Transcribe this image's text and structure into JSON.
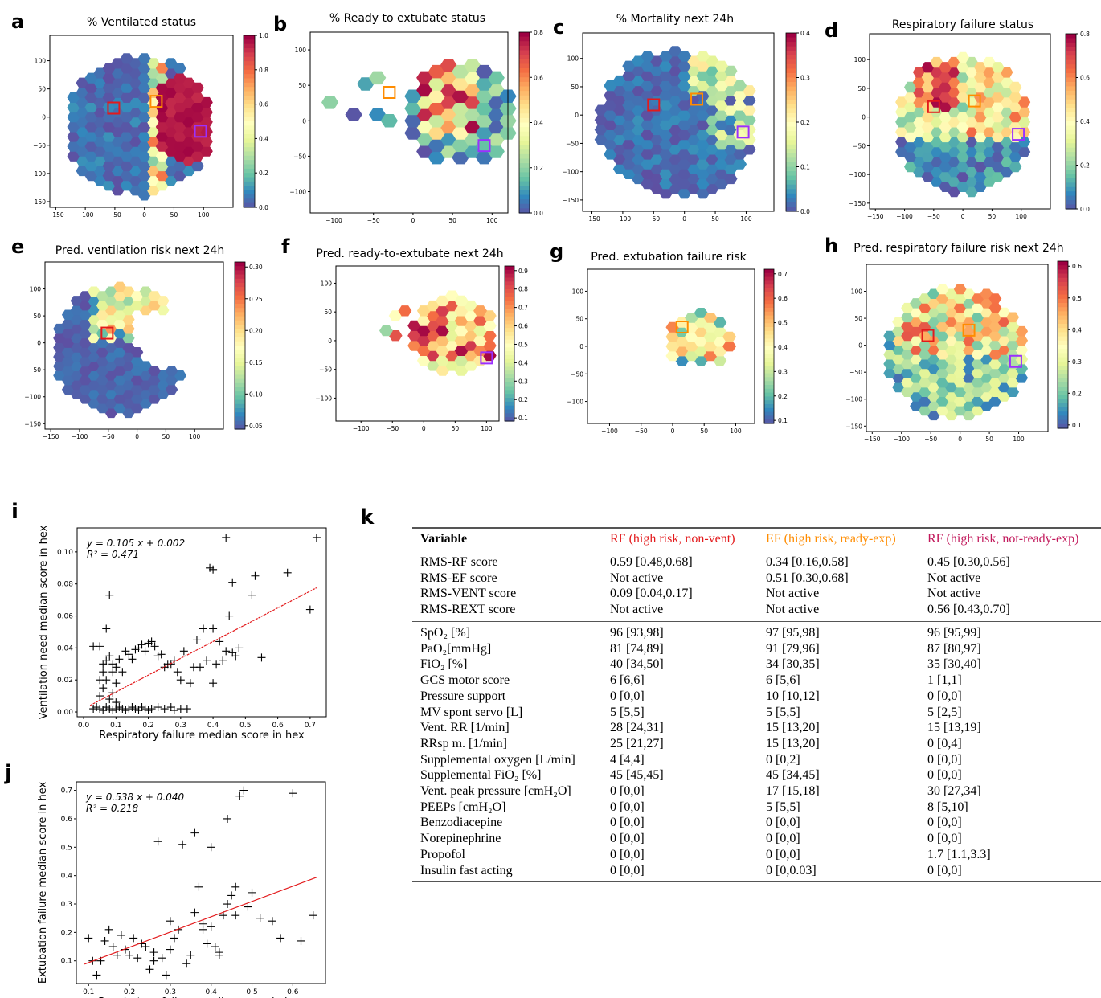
{
  "colormap": [
    "#5e4fa2",
    "#3288bd",
    "#66c2a5",
    "#abdda4",
    "#e6f598",
    "#ffffbf",
    "#fee08b",
    "#fdae61",
    "#f46d43",
    "#d53e4f",
    "#9e0142"
  ],
  "box_colors": {
    "red": "#e31a1c",
    "orange": "#ff8c00",
    "purple": "#9b30ff"
  },
  "hexmaps": [
    {
      "letter": "a",
      "title": "% Ventilated status",
      "xticks": [
        "−150",
        "−100",
        "−50",
        "0",
        "50",
        "100"
      ],
      "yticks": [
        "100",
        "50",
        "0",
        "−50",
        "−100",
        "−150"
      ],
      "cbar_ticks": [
        "1.0",
        "0.8",
        "0.6",
        "0.4",
        "0.2",
        "0.0"
      ]
    },
    {
      "letter": "b",
      "title": "% Ready to extubate status",
      "xticks": [
        "−100",
        "−50",
        "0",
        "50",
        "100"
      ],
      "yticks": [
        "100",
        "50",
        "0",
        "−50",
        "−100"
      ],
      "cbar_ticks": [
        "0.8",
        "0.6",
        "0.4",
        "0.2",
        "0.0"
      ]
    },
    {
      "letter": "c",
      "title": "% Mortality next 24h",
      "xticks": [
        "−150",
        "−100",
        "−50",
        "0",
        "50",
        "100"
      ],
      "yticks": [
        "100",
        "50",
        "0",
        "−50",
        "−100",
        "−150"
      ],
      "cbar_ticks": [
        "0.4",
        "0.3",
        "0.2",
        "0.1",
        "0.0"
      ]
    },
    {
      "letter": "d",
      "title": "Respiratory failure status",
      "xticks": [
        "−150",
        "−100",
        "−50",
        "0",
        "50",
        "100"
      ],
      "yticks": [
        "100",
        "50",
        "0",
        "−50",
        "−100",
        "−150"
      ],
      "cbar_ticks": [
        "0.8",
        "0.6",
        "0.4",
        "0.2",
        "0.0"
      ]
    },
    {
      "letter": "e",
      "title": "Pred. ventilation risk next 24h",
      "xticks": [
        "−150",
        "−100",
        "−50",
        "0",
        "50",
        "100"
      ],
      "yticks": [
        "100",
        "50",
        "0",
        "−50",
        "−100",
        "−150"
      ],
      "cbar_ticks": [
        "0.30",
        "0.25",
        "0.20",
        "0.15",
        "0.10",
        "0.05"
      ]
    },
    {
      "letter": "f",
      "title": "Pred. ready-to-extubate next 24h",
      "xticks": [
        "−100",
        "−50",
        "0",
        "50",
        "100"
      ],
      "yticks": [
        "100",
        "50",
        "0",
        "−50",
        "−100"
      ],
      "cbar_ticks": [
        "0.9",
        "0.8",
        "0.7",
        "0.6",
        "0.5",
        "0.4",
        "0.3",
        "0.2",
        "0.1"
      ]
    },
    {
      "letter": "g",
      "title": "Pred. extubation failure risk",
      "xticks": [
        "−100",
        "−50",
        "0",
        "50",
        "100"
      ],
      "yticks": [
        "100",
        "50",
        "0",
        "−50",
        "−100"
      ],
      "cbar_ticks": [
        "0.7",
        "0.6",
        "0.5",
        "0.4",
        "0.3",
        "0.2",
        "0.1"
      ]
    },
    {
      "letter": "h",
      "title": "Pred. respiratory failure risk next 24h",
      "xticks": [
        "−150",
        "−100",
        "−50",
        "0",
        "50",
        "100"
      ],
      "yticks": [
        "100",
        "50",
        "0",
        "−50",
        "−100",
        "−150"
      ],
      "cbar_ticks": [
        "0.6",
        "0.5",
        "0.4",
        "0.3",
        "0.2",
        "0.1"
      ]
    }
  ],
  "chart_data": [
    {
      "type": "scatter",
      "panel": "i",
      "xlabel": "Respiratory failure median score in hex",
      "ylabel": "Ventilation need median score in hex",
      "xlim": [
        -0.02,
        0.75
      ],
      "ylim": [
        -0.003,
        0.115
      ],
      "xticks": [
        "0.0",
        "0.1",
        "0.2",
        "0.3",
        "0.4",
        "0.5",
        "0.6",
        "0.7"
      ],
      "yticks": [
        "0.00",
        "0.02",
        "0.04",
        "0.06",
        "0.08",
        "0.10"
      ],
      "equation": "y = 0.105 x + 0.002",
      "r2": "R² = 0.471",
      "fit": {
        "slope": 0.105,
        "intercept": 0.002,
        "x0": 0.02,
        "x1": 0.72
      },
      "points": [
        [
          0.03,
          0.041
        ],
        [
          0.05,
          0.041
        ],
        [
          0.07,
          0.052
        ],
        [
          0.08,
          0.073
        ],
        [
          0.06,
          0.03
        ],
        [
          0.09,
          0.025
        ],
        [
          0.1,
          0.018
        ],
        [
          0.12,
          0.025
        ],
        [
          0.15,
          0.033
        ],
        [
          0.17,
          0.04
        ],
        [
          0.19,
          0.038
        ],
        [
          0.2,
          0.043
        ],
        [
          0.22,
          0.041
        ],
        [
          0.25,
          0.028
        ],
        [
          0.23,
          0.035
        ],
        [
          0.27,
          0.03
        ],
        [
          0.29,
          0.025
        ],
        [
          0.3,
          0.02
        ],
        [
          0.33,
          0.018
        ],
        [
          0.36,
          0.028
        ],
        [
          0.38,
          0.032
        ],
        [
          0.4,
          0.052
        ],
        [
          0.42,
          0.044
        ],
        [
          0.44,
          0.038
        ],
        [
          0.46,
          0.037
        ],
        [
          0.48,
          0.04
        ],
        [
          0.39,
          0.09
        ],
        [
          0.4,
          0.089
        ],
        [
          0.44,
          0.109
        ],
        [
          0.46,
          0.081
        ],
        [
          0.53,
          0.085
        ],
        [
          0.52,
          0.073
        ],
        [
          0.55,
          0.034
        ],
        [
          0.63,
          0.087
        ],
        [
          0.7,
          0.064
        ],
        [
          0.72,
          0.109
        ],
        [
          0.45,
          0.06
        ],
        [
          0.4,
          0.018
        ],
        [
          0.35,
          0.045
        ],
        [
          0.37,
          0.052
        ],
        [
          0.03,
          0.002
        ],
        [
          0.04,
          0.003
        ],
        [
          0.05,
          0.002
        ],
        [
          0.06,
          0.001
        ],
        [
          0.07,
          0.003
        ],
        [
          0.08,
          0.002
        ],
        [
          0.09,
          0.001
        ],
        [
          0.1,
          0.002
        ],
        [
          0.11,
          0.003
        ],
        [
          0.12,
          0.002
        ],
        [
          0.13,
          0.001
        ],
        [
          0.14,
          0.002
        ],
        [
          0.15,
          0.003
        ],
        [
          0.16,
          0.002
        ],
        [
          0.17,
          0.001
        ],
        [
          0.18,
          0.003
        ],
        [
          0.19,
          0.002
        ],
        [
          0.2,
          0.001
        ],
        [
          0.21,
          0.002
        ],
        [
          0.23,
          0.003
        ],
        [
          0.25,
          0.002
        ],
        [
          0.27,
          0.003
        ],
        [
          0.28,
          0.001
        ],
        [
          0.3,
          0.002
        ],
        [
          0.32,
          0.002
        ],
        [
          0.05,
          0.01
        ],
        [
          0.06,
          0.015
        ],
        [
          0.07,
          0.02
        ],
        [
          0.08,
          0.008
        ],
        [
          0.09,
          0.012
        ],
        [
          0.1,
          0.006
        ],
        [
          0.05,
          0.02
        ],
        [
          0.06,
          0.025
        ],
        [
          0.07,
          0.032
        ],
        [
          0.08,
          0.035
        ],
        [
          0.09,
          0.03
        ],
        [
          0.1,
          0.028
        ],
        [
          0.11,
          0.033
        ],
        [
          0.13,
          0.038
        ],
        [
          0.14,
          0.036
        ],
        [
          0.16,
          0.039
        ],
        [
          0.18,
          0.042
        ],
        [
          0.21,
          0.044
        ],
        [
          0.24,
          0.036
        ],
        [
          0.26,
          0.03
        ],
        [
          0.28,
          0.032
        ],
        [
          0.31,
          0.038
        ],
        [
          0.34,
          0.028
        ],
        [
          0.41,
          0.03
        ],
        [
          0.43,
          0.032
        ],
        [
          0.47,
          0.035
        ]
      ]
    },
    {
      "type": "scatter",
      "panel": "j",
      "xlabel": "Respiratory failure median score in hex",
      "ylabel": "Extubation failure median score in hex",
      "xlim": [
        0.07,
        0.68
      ],
      "ylim": [
        0.02,
        0.73
      ],
      "xticks": [
        "0.1",
        "0.2",
        "0.3",
        "0.4",
        "0.5",
        "0.6"
      ],
      "yticks": [
        "0.1",
        "0.2",
        "0.3",
        "0.4",
        "0.5",
        "0.6",
        "0.7"
      ],
      "equation": "y = 0.538 x + 0.040",
      "r2": "R² = 0.218",
      "fit": {
        "slope": 0.538,
        "intercept": 0.04,
        "x0": 0.09,
        "x1": 0.66
      },
      "points": [
        [
          0.1,
          0.18
        ],
        [
          0.11,
          0.1
        ],
        [
          0.12,
          0.05
        ],
        [
          0.13,
          0.1
        ],
        [
          0.14,
          0.17
        ],
        [
          0.15,
          0.21
        ],
        [
          0.16,
          0.15
        ],
        [
          0.17,
          0.12
        ],
        [
          0.18,
          0.19
        ],
        [
          0.19,
          0.14
        ],
        [
          0.2,
          0.12
        ],
        [
          0.21,
          0.18
        ],
        [
          0.22,
          0.11
        ],
        [
          0.23,
          0.16
        ],
        [
          0.24,
          0.15
        ],
        [
          0.25,
          0.07
        ],
        [
          0.26,
          0.13
        ],
        [
          0.27,
          0.52
        ],
        [
          0.28,
          0.11
        ],
        [
          0.29,
          0.05
        ],
        [
          0.3,
          0.24
        ],
        [
          0.31,
          0.18
        ],
        [
          0.32,
          0.21
        ],
        [
          0.33,
          0.51
        ],
        [
          0.34,
          0.09
        ],
        [
          0.35,
          0.12
        ],
        [
          0.36,
          0.55
        ],
        [
          0.37,
          0.36
        ],
        [
          0.38,
          0.23
        ],
        [
          0.39,
          0.16
        ],
        [
          0.4,
          0.5
        ],
        [
          0.41,
          0.15
        ],
        [
          0.42,
          0.13
        ],
        [
          0.43,
          0.26
        ],
        [
          0.44,
          0.6
        ],
        [
          0.45,
          0.33
        ],
        [
          0.46,
          0.36
        ],
        [
          0.47,
          0.68
        ],
        [
          0.48,
          0.7
        ],
        [
          0.49,
          0.29
        ],
        [
          0.5,
          0.34
        ],
        [
          0.52,
          0.25
        ],
        [
          0.55,
          0.24
        ],
        [
          0.57,
          0.18
        ],
        [
          0.6,
          0.69
        ],
        [
          0.62,
          0.17
        ],
        [
          0.65,
          0.26
        ],
        [
          0.38,
          0.21
        ],
        [
          0.4,
          0.22
        ],
        [
          0.44,
          0.3
        ],
        [
          0.46,
          0.26
        ],
        [
          0.36,
          0.27
        ],
        [
          0.42,
          0.12
        ],
        [
          0.3,
          0.14
        ],
        [
          0.26,
          0.1
        ]
      ]
    }
  ],
  "table": {
    "letter": "k",
    "headers": [
      "Variable",
      "RF (high risk, non-vent)",
      "EF (high risk, ready-exp)",
      "RF (high risk, not-ready-exp)"
    ],
    "header_colors": [
      "#000000",
      "#e31a1c",
      "#ff8c00",
      "#c2185b"
    ],
    "rows_top": [
      [
        "RMS-RF score",
        "0.59 [0.48,0.68]",
        "0.34 [0.16,0.58]",
        "0.45 [0.30,0.56]"
      ],
      [
        "RMS-EF score",
        "Not active",
        "0.51 [0.30,0.68]",
        "Not active"
      ],
      [
        "RMS-VENT score",
        "0.09 [0.04,0.17]",
        "Not active",
        "Not active"
      ],
      [
        "RMS-REXT score",
        "Not active",
        "Not active",
        "0.56 [0.43,0.70]"
      ]
    ],
    "rows_bottom": [
      [
        "SpO₂ [%]",
        "96 [93,98]",
        "97 [95,98]",
        "96 [95,99]"
      ],
      [
        "PaO₂[mmHg]",
        "81 [74,89]",
        "91 [79,96]",
        "87 [80,97]"
      ],
      [
        "FiO₂ [%]",
        "40 [34,50]",
        "34 [30,35]",
        "35 [30,40]"
      ],
      [
        "GCS motor score",
        "6 [6,6]",
        "6 [5,6]",
        "1 [1,1]"
      ],
      [
        "Pressure support",
        "0 [0,0]",
        "10 [10,12]",
        "0 [0,0]"
      ],
      [
        "MV spont servo [L]",
        "5 [5,5]",
        "5 [5,5]",
        "5 [2,5]"
      ],
      [
        "Vent. RR [1/min]",
        "28 [24,31]",
        "15 [13,20]",
        "15 [13,19]"
      ],
      [
        "RRsp m. [1/min]",
        "25 [21,27]",
        "15 [13,20]",
        "0 [0,4]"
      ],
      [
        "Supplemental oxygen [L/min]",
        "4 [4,4]",
        "0 [0,2]",
        "0 [0,0]"
      ],
      [
        "Supplemental FiO₂ [%]",
        "45 [45,45]",
        "45 [34,45]",
        "0 [0,0]"
      ],
      [
        "Vent. peak pressure [cmH₂O]",
        "0 [0,0]",
        "17 [15,18]",
        "30 [27,34]"
      ],
      [
        "PEEPs [cmH₂O]",
        "0 [0,0]",
        "5 [5,5]",
        "8 [5,10]"
      ],
      [
        "Benzodiacepine",
        "0 [0,0]",
        "0 [0,0]",
        "0 [0,0]"
      ],
      [
        "Norepinephrine",
        "0 [0,0]",
        "0 [0,0]",
        "0 [0,0]"
      ],
      [
        "Propofol",
        "0 [0,0]",
        "0 [0,0]",
        "1.7 [1.1,3.3]"
      ],
      [
        "Insulin fast acting",
        "0 [0,0]",
        "0 [0,0.03]",
        "0 [0,0]"
      ]
    ]
  },
  "scatter_letters": [
    "i",
    "j"
  ]
}
